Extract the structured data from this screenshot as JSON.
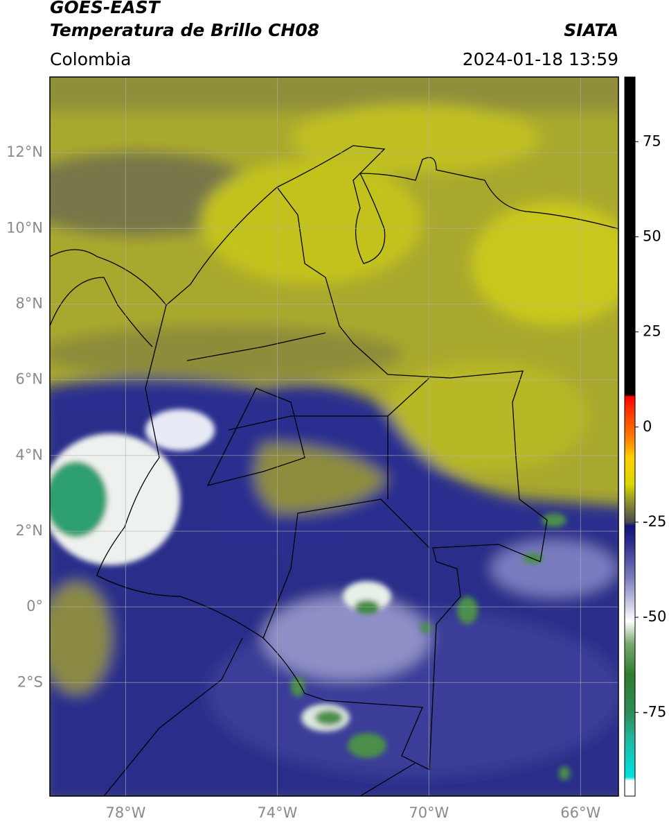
{
  "header": {
    "line1": "GOES-EAST",
    "line2": "Temperatura de Brillo CH08",
    "agency": "SIATA",
    "region": "Colombia",
    "timestamp": "2024-01-18 13:59"
  },
  "map": {
    "lon_range": [
      -80,
      -65
    ],
    "lat_range": [
      -5,
      14
    ],
    "lon_ticks": [
      {
        "value": -78,
        "label": "78°W"
      },
      {
        "value": -74,
        "label": "74°W"
      },
      {
        "value": -70,
        "label": "70°W"
      },
      {
        "value": -66,
        "label": "66°W"
      }
    ],
    "lat_ticks": [
      {
        "value": 12,
        "label": "12°N"
      },
      {
        "value": 10,
        "label": "10°N"
      },
      {
        "value": 8,
        "label": "8°N"
      },
      {
        "value": 6,
        "label": "6°N"
      },
      {
        "value": 4,
        "label": "4°N"
      },
      {
        "value": 2,
        "label": "2°N"
      },
      {
        "value": 0,
        "label": "0°"
      },
      {
        "value": -2,
        "label": "2°S"
      }
    ],
    "grid": true
  },
  "colorbar": {
    "range": [
      -97,
      92
    ],
    "ticks": [
      75,
      50,
      25,
      0,
      -25,
      -50,
      -75
    ],
    "stops": [
      {
        "value": -97,
        "color": "#ffffff"
      },
      {
        "value": -93,
        "color": "#ffffff"
      },
      {
        "value": -92,
        "color": "#00e0e0"
      },
      {
        "value": -82,
        "color": "#20b8a0"
      },
      {
        "value": -75,
        "color": "#2e8b57"
      },
      {
        "value": -65,
        "color": "#2e7d2e"
      },
      {
        "value": -57,
        "color": "#7aa870"
      },
      {
        "value": -51,
        "color": "#ffffff"
      },
      {
        "value": -40,
        "color": "#8080c0"
      },
      {
        "value": -30,
        "color": "#2a2a8a"
      },
      {
        "value": -26,
        "color": "#14147a"
      },
      {
        "value": -25,
        "color": "#4a4a50"
      },
      {
        "value": -20,
        "color": "#8a8a30"
      },
      {
        "value": -15,
        "color": "#d8d800"
      },
      {
        "value": -8,
        "color": "#ffd000"
      },
      {
        "value": -3,
        "color": "#ff8000"
      },
      {
        "value": 5,
        "color": "#ff2a00"
      },
      {
        "value": 8,
        "color": "#ff0000"
      },
      {
        "value": 8.5,
        "color": "#000000"
      },
      {
        "value": 92,
        "color": "#000000"
      }
    ]
  }
}
